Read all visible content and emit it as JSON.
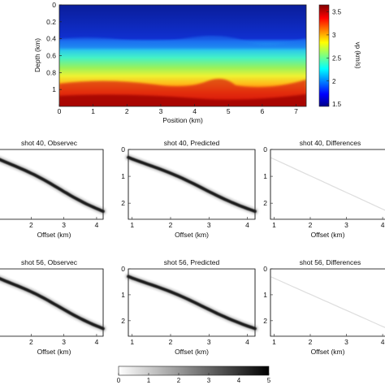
{
  "velocity_model": {
    "ylabel": "Depth (km)",
    "xlabel": "Position (km)",
    "xticks": [
      "0",
      "1",
      "2",
      "3",
      "4",
      "5",
      "6",
      "7"
    ],
    "yticks": [
      "0",
      "0.2",
      "0.4",
      "0.6",
      "0.8",
      "1"
    ],
    "colorbar_label": "vp (km/s)",
    "colorbar_ticks": [
      "1.5",
      "2",
      "2.5",
      "3",
      "3.5"
    ]
  },
  "gathers": [
    {
      "title": "shot 40, Observec",
      "xlabel": "Offset (km)"
    },
    {
      "title": "shot 40, Predicted",
      "xlabel": "Offset (km)"
    },
    {
      "title": "shot 40, Differences",
      "xlabel": "Offset (km)"
    },
    {
      "title": "shot 56, Observec",
      "xlabel": "Offset (km)"
    },
    {
      "title": "shot 56, Predicted",
      "xlabel": "Offset (km)"
    },
    {
      "title": "shot 56, Differences",
      "xlabel": "Offset (km)"
    }
  ],
  "gather_xticks": [
    "1",
    "2",
    "3",
    "4"
  ],
  "gather_yticks": [
    "0",
    "1",
    "2"
  ],
  "amplitude_colorbar_ticks": [
    "0",
    "1",
    "2",
    "3",
    "4",
    "5"
  ],
  "colors": {
    "jet": [
      "#000080",
      "#0000ff",
      "#00c0ff",
      "#40ffb0",
      "#c0ff40",
      "#ffe000",
      "#ff7000",
      "#e00000",
      "#800000"
    ],
    "grey_low": "#ffffff",
    "grey_high": "#000000"
  }
}
